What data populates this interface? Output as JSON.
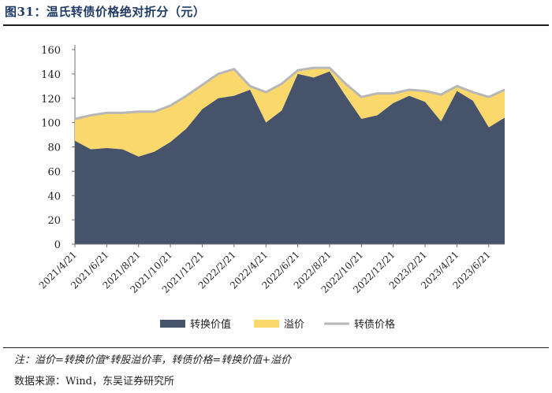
{
  "header": {
    "title": "图31：温氏转债价格绝对折分（元）"
  },
  "footer": {
    "note": "注：溢价=转换价值*转股溢价率，转债价格=转换价值+溢价",
    "source": "数据来源：Wind，东吴证券研究所"
  },
  "colors": {
    "conversion_value": "#46536a",
    "premium": "#fbd86c",
    "bond_price": "#b7b7b7",
    "axis": "#6f6f6f"
  },
  "chart_data": {
    "type": "area",
    "title": "",
    "xlabel": "",
    "ylabel": "",
    "ylim": [
      0,
      160
    ],
    "yticks": [
      0,
      20,
      40,
      60,
      80,
      100,
      120,
      140,
      160
    ],
    "xticks": [
      "2021/4/21",
      "2021/6/21",
      "2021/8/21",
      "2021/10/21",
      "2021/12/21",
      "2022/2/21",
      "2022/4/21",
      "2022/6/21",
      "2022/8/21",
      "2022/10/21",
      "2022/12/21",
      "2023/2/21",
      "2023/4/21",
      "2023/6/21"
    ],
    "legend_position": "bottom",
    "x": [
      "2021/4/21",
      "2021/5/21",
      "2021/6/21",
      "2021/7/21",
      "2021/8/21",
      "2021/9/21",
      "2021/10/21",
      "2021/11/21",
      "2021/12/21",
      "2022/1/21",
      "2022/2/21",
      "2022/3/21",
      "2022/4/21",
      "2022/5/21",
      "2022/6/21",
      "2022/7/21",
      "2022/8/21",
      "2022/9/21",
      "2022/10/21",
      "2022/11/21",
      "2022/12/21",
      "2023/1/21",
      "2023/2/21",
      "2023/3/21",
      "2023/4/21",
      "2023/5/21",
      "2023/6/21",
      "2023/7/21"
    ],
    "series": [
      {
        "name": "转换价值",
        "stacked": true,
        "values": [
          85,
          78,
          79,
          78,
          72,
          76,
          84,
          95,
          111,
          120,
          122,
          127,
          100,
          110,
          140,
          137,
          142,
          122,
          103,
          106,
          116,
          122,
          117,
          101,
          126,
          118,
          96,
          104
        ]
      },
      {
        "name": "溢价",
        "stacked": true,
        "values": [
          18,
          28,
          29,
          30,
          37,
          33,
          30,
          27,
          20,
          20,
          22,
          3,
          25,
          22,
          3,
          8,
          3,
          10,
          18,
          18,
          8,
          5,
          9,
          22,
          4,
          7,
          25,
          23
        ]
      },
      {
        "name": "转债价格",
        "type": "line",
        "values": [
          103,
          106,
          108,
          108,
          109,
          109,
          114,
          122,
          131,
          140,
          144,
          130,
          125,
          132,
          143,
          145,
          145,
          132,
          121,
          124,
          124,
          127,
          126,
          123,
          130,
          125,
          121,
          127
        ]
      }
    ]
  }
}
